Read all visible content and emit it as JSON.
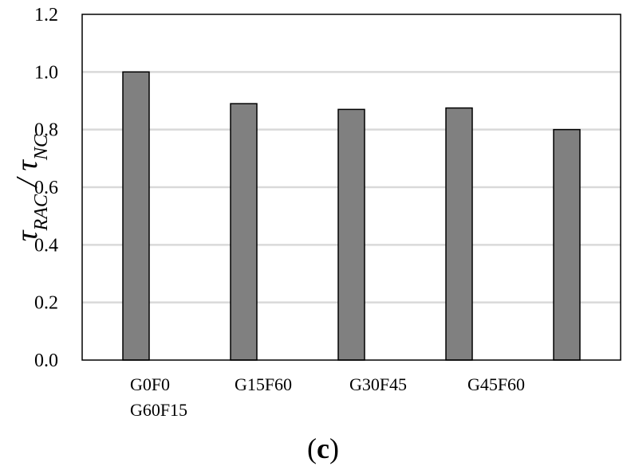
{
  "chart_data": {
    "type": "bar",
    "categories": [
      "G0F0",
      "G15F60",
      "G30F45",
      "G45F60",
      "G60F15"
    ],
    "values": [
      1.0,
      0.89,
      0.87,
      0.875,
      0.8
    ],
    "ylim": [
      0,
      1.2
    ],
    "yticks": [
      "0.0",
      "0.2",
      "0.4",
      "0.6",
      "0.8",
      "1.0",
      "1.2"
    ],
    "ytick_values": [
      0,
      0.2,
      0.4,
      0.6,
      0.8,
      1.0,
      1.2
    ],
    "ylabel": {
      "tau1": "τ",
      "sub1": "RAC",
      "slash": " / ",
      "tau2": "τ",
      "sub2": "NC"
    },
    "panel_label": {
      "open": "(",
      "letter": "c",
      "close": ")"
    },
    "grid": true,
    "legend": "none",
    "colors": {
      "bar": "#808080",
      "bar_edge": "#000000",
      "grid": "#d9d9d9",
      "axis": "#000000"
    }
  }
}
